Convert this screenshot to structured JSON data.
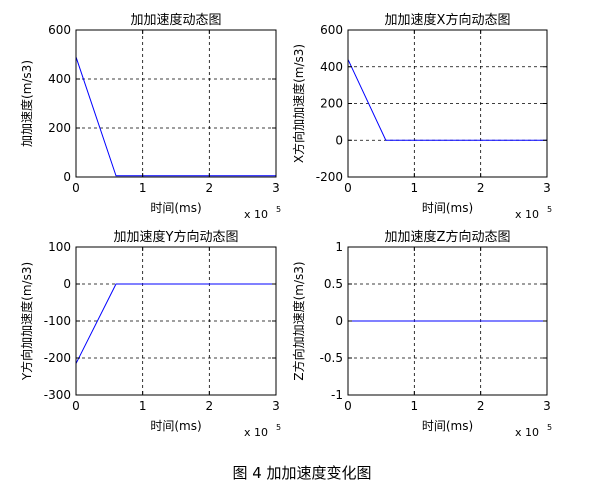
{
  "figure_caption": "图 4  加加速度变化图",
  "chart_data": [
    {
      "type": "line",
      "title": "加加速度动态图",
      "xlabel": "时间(ms)",
      "ylabel": "加加速度(m/s3)",
      "x_exponent_label": "x 10",
      "x_exponent": "5",
      "xlim": [
        0,
        3
      ],
      "ylim": [
        0,
        600
      ],
      "xticks": [
        "0",
        "1",
        "2",
        "3"
      ],
      "yticks": [
        "0",
        "200",
        "400",
        "600"
      ],
      "xtick_values": [
        0,
        1,
        2,
        3
      ],
      "ytick_values": [
        0,
        200,
        400,
        600
      ],
      "grid": true,
      "line_color": "#0000ff",
      "series": [
        {
          "x": [
            0,
            0.6,
            3
          ],
          "y": [
            490,
            5,
            5
          ]
        }
      ]
    },
    {
      "type": "line",
      "title": "加加速度X方向动态图",
      "xlabel": "时间(ms)",
      "ylabel": "X方向加加速度(m/s3)",
      "x_exponent_label": "x 10",
      "x_exponent": "5",
      "xlim": [
        0,
        3
      ],
      "ylim": [
        -200,
        600
      ],
      "xticks": [
        "0",
        "1",
        "2",
        "3"
      ],
      "yticks": [
        "-200",
        "0",
        "200",
        "400",
        "600"
      ],
      "xtick_values": [
        0,
        1,
        2,
        3
      ],
      "ytick_values": [
        -200,
        0,
        200,
        400,
        600
      ],
      "grid": true,
      "line_color": "#0000ff",
      "series": [
        {
          "x": [
            0,
            0.57,
            3
          ],
          "y": [
            440,
            0,
            0
          ]
        }
      ]
    },
    {
      "type": "line",
      "title": "加加速度Y方向动态图",
      "xlabel": "时间(ms)",
      "ylabel": "Y方向加加速度(m/s3)",
      "x_exponent_label": "x 10",
      "x_exponent": "5",
      "xlim": [
        0,
        3
      ],
      "ylim": [
        -300,
        100
      ],
      "xticks": [
        "0",
        "1",
        "2",
        "3"
      ],
      "yticks": [
        "-300",
        "-200",
        "-100",
        "0",
        "100"
      ],
      "xtick_values": [
        0,
        1,
        2,
        3
      ],
      "ytick_values": [
        -300,
        -200,
        -100,
        0,
        100
      ],
      "grid": true,
      "line_color": "#0000ff",
      "series": [
        {
          "x": [
            0,
            0.6,
            3
          ],
          "y": [
            -215,
            0,
            0
          ]
        }
      ]
    },
    {
      "type": "line",
      "title": "加加速度Z方向动态图",
      "xlabel": "时间(ms)",
      "ylabel": "Z方向加加速度(m/s3)",
      "x_exponent_label": "x 10",
      "x_exponent": "5",
      "xlim": [
        0,
        3
      ],
      "ylim": [
        -1,
        1
      ],
      "xticks": [
        "0",
        "1",
        "2",
        "3"
      ],
      "yticks": [
        "-1",
        "-0.5",
        "0",
        "0.5",
        "1"
      ],
      "xtick_values": [
        0,
        1,
        2,
        3
      ],
      "ytick_values": [
        -1,
        -0.5,
        0,
        0.5,
        1
      ],
      "grid": true,
      "line_color": "#0000ff",
      "series": [
        {
          "x": [
            0,
            3
          ],
          "y": [
            0,
            0
          ]
        }
      ]
    }
  ]
}
